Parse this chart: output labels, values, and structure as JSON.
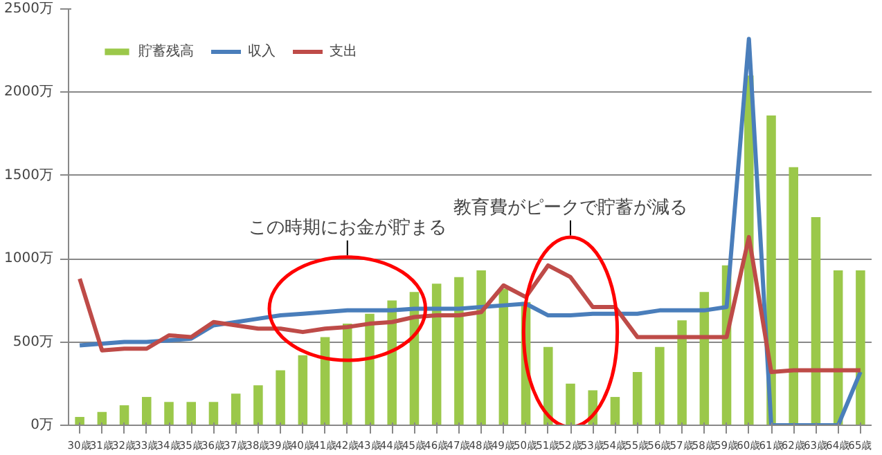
{
  "chart_data": {
    "type": "bar",
    "categories": [
      "30歳",
      "31歳",
      "32歳",
      "33歳",
      "34歳",
      "35歳",
      "36歳",
      "37歳",
      "38歳",
      "39歳",
      "40歳",
      "41歳",
      "42歳",
      "43歳",
      "44歳",
      "45歳",
      "46歳",
      "47歳",
      "48歳",
      "49歳",
      "50歳",
      "51歳",
      "52歳",
      "53歳",
      "54歳",
      "55歳",
      "56歳",
      "57歳",
      "58歳",
      "59歳",
      "60歳",
      "61歳",
      "62歳",
      "63歳",
      "64歳",
      "65歳"
    ],
    "series": [
      {
        "name": "貯蓄残高",
        "color": "#9bc84a",
        "values": [
          50,
          80,
          120,
          170,
          140,
          140,
          140,
          190,
          240,
          330,
          420,
          530,
          610,
          670,
          750,
          800,
          850,
          890,
          930,
          820,
          740,
          470,
          250,
          210,
          170,
          320,
          470,
          630,
          800,
          960,
          2100,
          1860,
          1550,
          1250,
          930,
          930
        ]
      },
      {
        "name": "収入",
        "type": "line",
        "color": "#4a7ebb",
        "values": [
          480,
          490,
          500,
          500,
          510,
          520,
          600,
          620,
          640,
          660,
          670,
          680,
          690,
          690,
          690,
          700,
          700,
          700,
          710,
          720,
          730,
          660,
          660,
          670,
          670,
          670,
          690,
          690,
          690,
          710,
          2320,
          0,
          0,
          0,
          0,
          320
        ]
      },
      {
        "name": "支出",
        "type": "line",
        "color": "#be4b48",
        "values": [
          880,
          450,
          460,
          460,
          540,
          530,
          620,
          600,
          580,
          580,
          560,
          580,
          590,
          610,
          620,
          650,
          660,
          660,
          680,
          840,
          770,
          960,
          890,
          710,
          710,
          530,
          530,
          530,
          530,
          530,
          1130,
          320,
          330,
          330,
          330,
          330
        ]
      }
    ],
    "ylim": [
      0,
      2500
    ],
    "yticks": [
      {
        "value": 0,
        "label": "0万"
      },
      {
        "value": 500,
        "label": "500万"
      },
      {
        "value": 1000,
        "label": "1000万"
      },
      {
        "value": 1500,
        "label": "1500万"
      },
      {
        "value": 2000,
        "label": "2000万"
      },
      {
        "value": 2500,
        "label": "2500万"
      }
    ],
    "grid": "y",
    "legend": "top left",
    "marker": "none",
    "line_style": "solid",
    "annotations": [
      "この時期にお金が貯まる",
      "教育費がピークで貯蓄が減る"
    ]
  }
}
